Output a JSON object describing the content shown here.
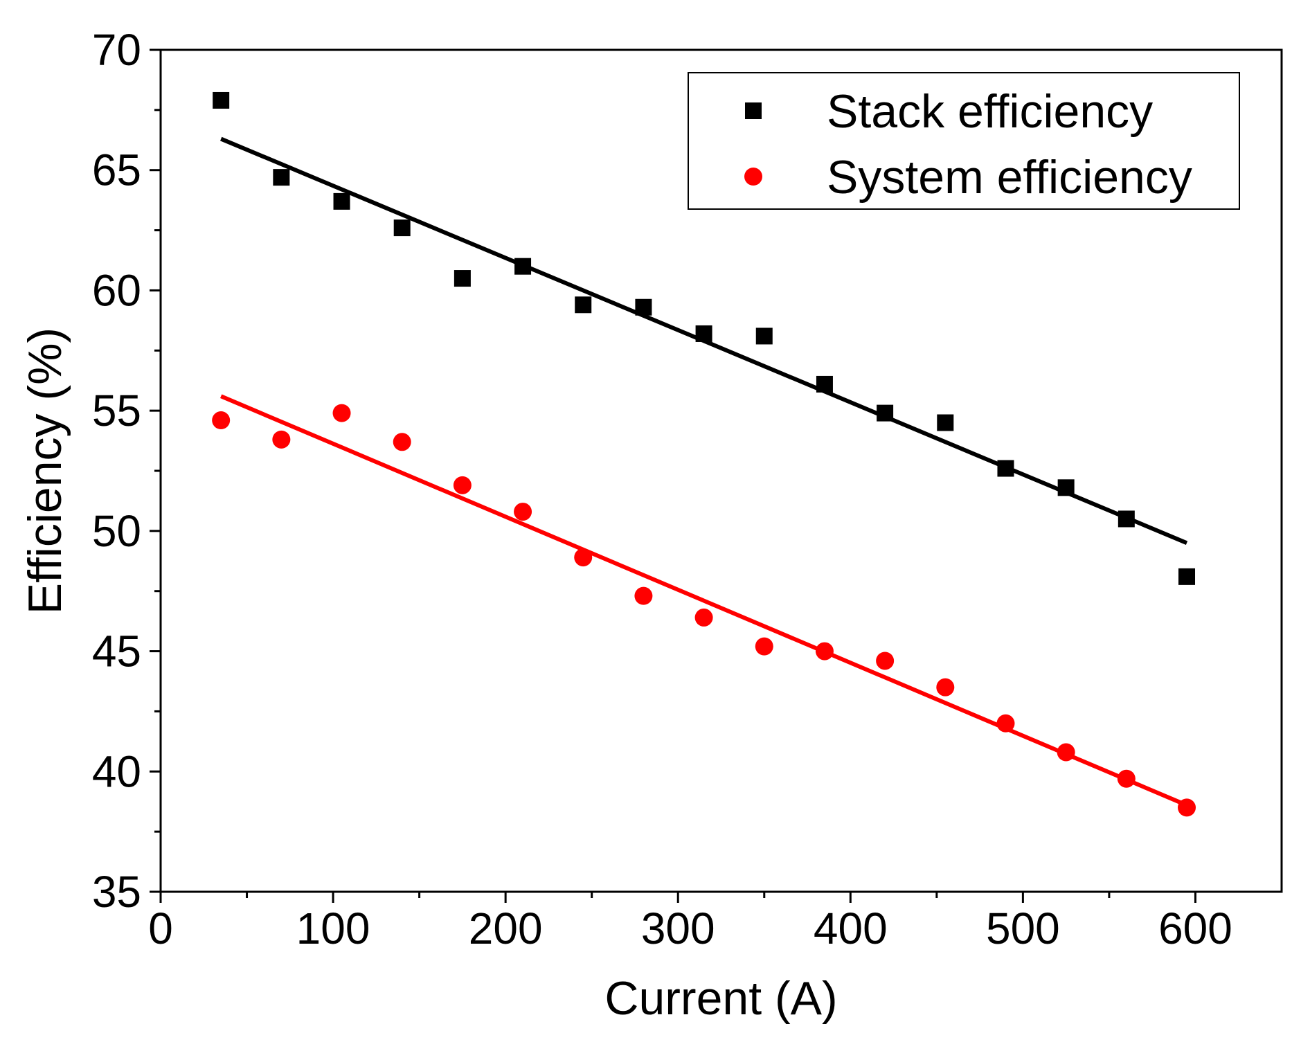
{
  "chart_data": {
    "type": "scatter",
    "title": "",
    "xlabel": "Current (A)",
    "ylabel": "Efficiency (%)",
    "xlim": [
      0,
      650
    ],
    "ylim": [
      35,
      70
    ],
    "xticks": [
      0,
      100,
      200,
      300,
      400,
      500,
      600
    ],
    "yticks": [
      35,
      40,
      45,
      50,
      55,
      60,
      65,
      70
    ],
    "xtick_labels": [
      "0",
      "100",
      "200",
      "300",
      "400",
      "500",
      "600"
    ],
    "ytick_labels": [
      "35",
      "40",
      "45",
      "50",
      "55",
      "60",
      "65",
      "70"
    ],
    "x_minor_step": 50,
    "y_minor_step": 2.5,
    "grid": false,
    "legend_position": "top-right",
    "series": [
      {
        "name": "Stack efficiency",
        "marker": "square",
        "color": "#000000",
        "x": [
          35,
          70,
          105,
          140,
          175,
          210,
          245,
          280,
          315,
          350,
          385,
          420,
          455,
          490,
          525,
          560,
          595
        ],
        "y": [
          67.9,
          64.7,
          63.7,
          62.6,
          60.5,
          61.0,
          59.4,
          59.3,
          58.2,
          58.1,
          56.1,
          54.9,
          54.5,
          52.6,
          51.8,
          50.5,
          48.1
        ],
        "fit": {
          "x": [
            35,
            595
          ],
          "y": [
            66.3,
            49.5
          ]
        }
      },
      {
        "name": "System efficiency",
        "marker": "circle",
        "color": "#ff0000",
        "x": [
          35,
          70,
          105,
          140,
          175,
          210,
          245,
          280,
          315,
          350,
          385,
          420,
          455,
          490,
          525,
          560,
          595
        ],
        "y": [
          54.6,
          53.8,
          54.9,
          53.7,
          51.9,
          50.8,
          48.9,
          47.3,
          46.4,
          45.2,
          45.0,
          44.6,
          43.5,
          42.0,
          40.8,
          39.7,
          38.5
        ],
        "fit": {
          "x": [
            35,
            595
          ],
          "y": [
            55.6,
            38.6
          ]
        }
      }
    ]
  }
}
